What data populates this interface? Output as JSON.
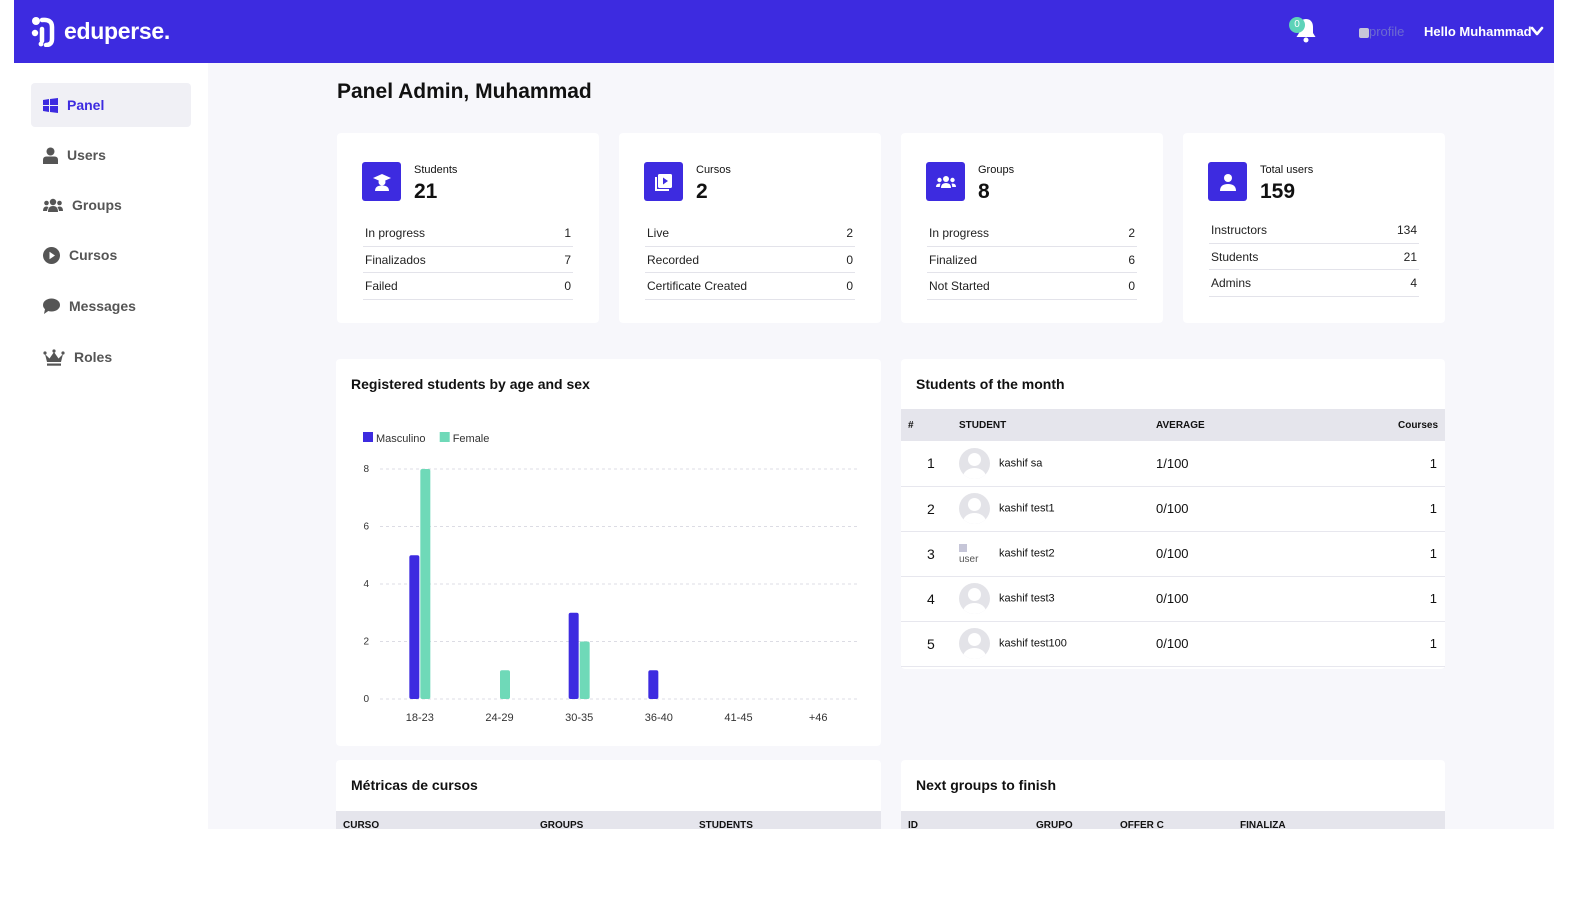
{
  "header": {
    "brand": "eduperse.",
    "notification_count": "0",
    "profile_alt": "profile",
    "greeting": "Hello Muhammad"
  },
  "sidebar": {
    "items": [
      {
        "label": "Panel",
        "icon": "windows-icon",
        "active": true
      },
      {
        "label": "Users",
        "icon": "user-icon"
      },
      {
        "label": "Groups",
        "icon": "users-group-icon"
      },
      {
        "label": "Cursos",
        "icon": "play-circle-icon"
      },
      {
        "label": "Messages",
        "icon": "chat-bubble-icon"
      },
      {
        "label": "Roles",
        "icon": "crown-icon"
      }
    ]
  },
  "page": {
    "title": "Panel Admin, Muhammad"
  },
  "stats": [
    {
      "label": "Students",
      "value": "21",
      "icon": "graduate-icon",
      "rows": [
        {
          "k": "In progress",
          "v": "1"
        },
        {
          "k": "Finalizados",
          "v": "7"
        },
        {
          "k": "Failed",
          "v": "0"
        }
      ]
    },
    {
      "label": "Cursos",
      "value": "2",
      "icon": "video-library-icon",
      "rows": [
        {
          "k": "Live",
          "v": "2"
        },
        {
          "k": "Recorded",
          "v": "0"
        },
        {
          "k": "Certificate Created",
          "v": "0"
        }
      ]
    },
    {
      "label": "Groups",
      "value": "8",
      "icon": "people-icon",
      "rows": [
        {
          "k": "In progress",
          "v": "2"
        },
        {
          "k": "Finalized",
          "v": "6"
        },
        {
          "k": "Not Started",
          "v": "0"
        }
      ]
    },
    {
      "label": "Total users",
      "value": "159",
      "icon": "person-icon",
      "rows": [
        {
          "k": "Instructors",
          "v": "134"
        },
        {
          "k": "Students",
          "v": "21"
        },
        {
          "k": "Admins",
          "v": "4"
        }
      ]
    }
  ],
  "chart_panel": {
    "title": "Registered students by age and sex"
  },
  "chart_data": {
    "type": "bar",
    "title": "Registered students by age and sex",
    "categories": [
      "18-23",
      "24-29",
      "30-35",
      "36-40",
      "41-45",
      "+46"
    ],
    "series": [
      {
        "name": "Masculino",
        "values": [
          5,
          0,
          3,
          1,
          0,
          0
        ],
        "color": "#3d2be0"
      },
      {
        "name": "Female",
        "values": [
          8,
          1,
          2,
          0,
          0,
          0
        ],
        "color": "#6fd9b8"
      }
    ],
    "yticks": [
      0,
      2,
      4,
      6,
      8
    ],
    "ylim": [
      0,
      8
    ],
    "grid": true,
    "legend": "top-left"
  },
  "students_month": {
    "title": "Students of the month",
    "columns": [
      "#",
      "STUDENT",
      "AVERAGE",
      "Courses"
    ],
    "rows": [
      {
        "rank": "1",
        "name": "kashif sa",
        "average": "1/100",
        "courses": "1",
        "avatar": "default"
      },
      {
        "rank": "2",
        "name": "kashif test1",
        "average": "0/100",
        "courses": "1",
        "avatar": "default"
      },
      {
        "rank": "3",
        "name": "kashif test2",
        "average": "0/100",
        "courses": "1",
        "avatar": "broken",
        "alt": "user"
      },
      {
        "rank": "4",
        "name": "kashif test3",
        "average": "0/100",
        "courses": "1",
        "avatar": "default"
      },
      {
        "rank": "5",
        "name": "kashif test100",
        "average": "0/100",
        "courses": "1",
        "avatar": "default"
      }
    ]
  },
  "course_metrics": {
    "title": "Métricas de cursos",
    "columns": [
      "CURSO",
      "GROUPS",
      "STUDENTS"
    ]
  },
  "next_groups": {
    "title": "Next groups to finish",
    "columns": [
      "ID",
      "GRUPO",
      "OFFER C",
      "FINALIZA"
    ]
  },
  "colors": {
    "brand": "#3d2be0",
    "accent": "#6fd9b8",
    "background": "#f7f7fb"
  }
}
